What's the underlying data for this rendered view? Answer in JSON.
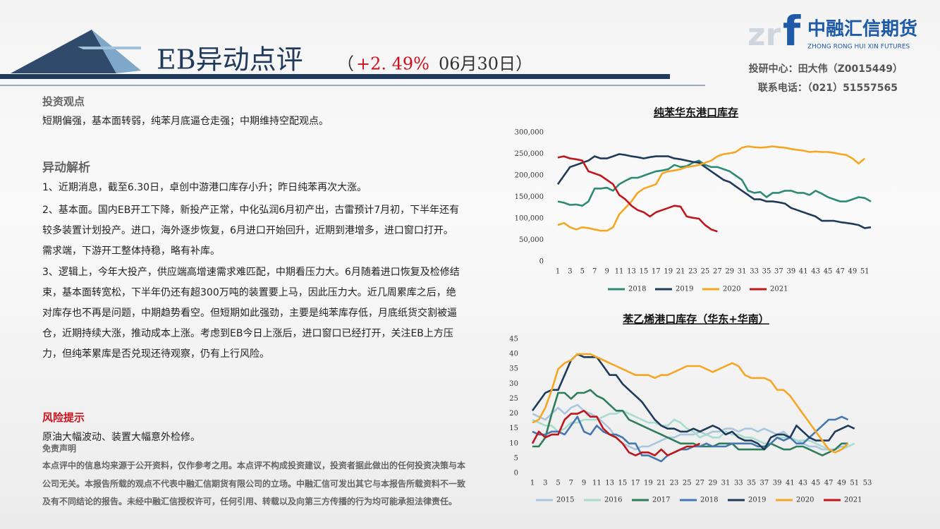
{
  "header": {
    "title": "EB异动点评",
    "open": "（",
    "change": "+2. 49%",
    "date": "06月30日）"
  },
  "logo": {
    "mark": "zr",
    "f": "f",
    "name": "中融汇信期货",
    "english": "ZHONG RONG HUI XIN FUTURES"
  },
  "contact": {
    "center": "投研中心：田大伟（Z0015449）",
    "phone": "联系电话：（021）51557565"
  },
  "view": {
    "heading": "投资观点",
    "text": "短期偏强，基本面转弱，纯苯月底逼仓走强；中期维持空配观点。"
  },
  "analysis": {
    "heading": "异动解析",
    "items": [
      "1、近期消息，截至6.30日，卓创中游港口库存小升；昨日纯苯再次大涨。",
      "2、基本面。国内EB开工下降，新投产正常，中化弘润6月初产出，古雷预计7月初，下半年还有较多装置计划投产。进口，海外逐步恢复，6月进口开始回升，近期到港增多，进口窗口打开。需求端，下游开工整体持稳，略有补库。",
      "3、逻辑上，今年大投产，供应端高增速需求难匹配，中期看压力大。6月随着进口恢复及检修结束，基本面转宽松，下半年仍还有超300万吨的装置要上马，因此压力大。近几周累库之后，绝对库存也不再是问题，中期趋势看空。但短期如此强劲，主要是纯苯库存低，月底纸货交割被逼仓，近期持续大涨，推动成本上涨。考虑到EB今日上涨后，进口窗口已经打开，关注EB上方压力，但纯苯累库是否兑现还待观察，仍有上行风险。"
    ]
  },
  "risk": {
    "heading": "风险提示",
    "text": "原油大幅波动、装置大幅意外检修。"
  },
  "disclaimer": {
    "heading": "免责声明",
    "text": "本点评中的信息均来源于公开资料，仅作参考之用。本点评不构成投资建议，投资者据此做出的任何投资决策与本公司无关。本报告所载的观点不代表中融汇信期货有限公司的立场。中融汇信可发出其它与本报告所载资料不一致及有不同结论的报告。未经中融汇信授权许可，任何引用、转载以及向第三方传播的行为均可能承担法律责任。"
  },
  "chart_data": [
    {
      "type": "line",
      "title": "纯苯华东港口库存",
      "categories": [
        1,
        null,
        3,
        null,
        5,
        null,
        7,
        null,
        9,
        null,
        11,
        null,
        13,
        null,
        15,
        null,
        17,
        null,
        19,
        null,
        21,
        null,
        23,
        null,
        25,
        null,
        27,
        null,
        29,
        null,
        31,
        null,
        33,
        null,
        35,
        null,
        37,
        null,
        39,
        null,
        41,
        null,
        43,
        null,
        45,
        null,
        47,
        null,
        49,
        null,
        51,
        null
      ],
      "ylim": [
        0,
        300000
      ],
      "yticks": [
        0,
        {
          "value": 50000,
          "label": "50,000"
        },
        {
          "value": 100000,
          "label": "100,000"
        },
        {
          "value": 150000,
          "label": "150,000"
        },
        {
          "value": 200000,
          "label": "200,000"
        },
        {
          "value": 250000,
          "label": "250,000"
        },
        {
          "value": 300000,
          "label": "300,000"
        }
      ],
      "legend": "bottom",
      "series": [
        {
          "name": "2018",
          "color": "#2e8b73",
          "values": [
            140000,
            137000,
            132000,
            133000,
            130000,
            140000,
            170000,
            170000,
            172000,
            165000,
            180000,
            188000,
            195000,
            195000,
            200000,
            205000,
            210000,
            212000,
            215000,
            225000,
            220000,
            222000,
            230000,
            235000,
            225000,
            220000,
            220000,
            215000,
            210000,
            200000,
            190000,
            165000,
            160000,
            162000,
            150000,
            160000,
            160000,
            165000,
            165000,
            160000,
            160000,
            155000,
            165000,
            158000,
            150000,
            145000,
            140000,
            140000,
            145000,
            150000,
            148000,
            140000
          ]
        },
        {
          "name": "2019",
          "color": "#1f3a5a",
          "values": [
            180000,
            200000,
            220000,
            225000,
            230000,
            235000,
            245000,
            240000,
            240000,
            245000,
            250000,
            248000,
            245000,
            243000,
            240000,
            243000,
            245000,
            245000,
            245000,
            240000,
            238000,
            235000,
            232000,
            230000,
            220000,
            210000,
            200000,
            190000,
            185000,
            175000,
            165000,
            155000,
            145000,
            145000,
            140000,
            140000,
            138000,
            135000,
            125000,
            120000,
            115000,
            110000,
            105000,
            95000,
            95000,
            95000,
            92000,
            90000,
            88000,
            85000,
            78000,
            80000
          ]
        },
        {
          "name": "2020",
          "color": "#f5a623",
          "values": [
            85000,
            90000,
            80000,
            75000,
            80000,
            78000,
            75000,
            72000,
            72000,
            80000,
            110000,
            125000,
            140000,
            160000,
            170000,
            175000,
            180000,
            205000,
            210000,
            212000,
            215000,
            220000,
            222000,
            225000,
            230000,
            235000,
            245000,
            250000,
            252000,
            255000,
            265000,
            268000,
            266000,
            265000,
            266000,
            268000,
            266000,
            265000,
            262000,
            260000,
            258000,
            255000,
            256000,
            255000,
            255000,
            253000,
            250000,
            248000,
            240000,
            228000,
            240000,
            null
          ]
        },
        {
          "name": "2021",
          "color": "#c0161d",
          "values": [
            242000,
            245000,
            240000,
            238000,
            235000,
            210000,
            205000,
            200000,
            190000,
            180000,
            155000,
            145000,
            130000,
            120000,
            115000,
            105000,
            115000,
            120000,
            125000,
            130000,
            128000,
            105000,
            102000,
            100000,
            85000,
            75000,
            70000,
            null,
            null,
            null,
            null,
            null,
            null,
            null,
            null,
            null,
            null,
            null,
            null,
            null,
            null,
            null,
            null,
            null,
            null,
            null,
            null,
            null,
            null,
            null,
            null,
            null
          ]
        }
      ]
    },
    {
      "type": "line",
      "title": "苯乙烯港口库存（华东+华南）",
      "categories": [
        1,
        null,
        3,
        null,
        5,
        null,
        7,
        null,
        9,
        null,
        11,
        null,
        13,
        null,
        15,
        null,
        17,
        null,
        19,
        null,
        21,
        null,
        23,
        null,
        25,
        null,
        27,
        null,
        29,
        null,
        31,
        null,
        33,
        null,
        35,
        null,
        37,
        null,
        39,
        null,
        41,
        null,
        43,
        null,
        45,
        null,
        47,
        null,
        49,
        null,
        51,
        null,
        53
      ],
      "ylim": [
        0,
        45
      ],
      "yticks": [
        0,
        5,
        10,
        15,
        20,
        25,
        30,
        35,
        40,
        45
      ],
      "legend": "bottom",
      "series": [
        {
          "name": "2015",
          "color": "#a9c6e0",
          "values": [
            20,
            19,
            18,
            20,
            22,
            20,
            22,
            23,
            21,
            20,
            19,
            17,
            15,
            12,
            10,
            9,
            8,
            9,
            9,
            10,
            11,
            12,
            12,
            13,
            13,
            13,
            14,
            13,
            14,
            14,
            15,
            15,
            14,
            15,
            15,
            14,
            15,
            14,
            13,
            14,
            12,
            11,
            10,
            9,
            9,
            8,
            8,
            8,
            9,
            9,
            null,
            null,
            null
          ]
        },
        {
          "name": "2016",
          "color": "#a8dccf",
          "values": [
            18,
            17,
            16,
            16,
            14,
            15,
            17,
            17,
            18,
            18,
            18,
            19,
            20,
            20,
            21,
            20,
            19,
            18,
            17,
            17,
            16,
            16,
            18,
            17,
            15,
            14,
            12,
            13,
            12,
            12,
            14,
            13,
            13,
            12,
            12,
            11,
            10,
            10,
            12,
            12,
            12,
            11,
            11,
            11,
            10,
            9,
            8,
            7,
            8,
            9,
            10,
            null,
            null
          ]
        },
        {
          "name": "2017",
          "color": "#2e7d5b",
          "values": [
            9,
            9,
            12,
            20,
            27,
            27,
            25,
            27,
            27,
            28,
            26,
            25,
            23,
            21,
            21,
            18,
            17,
            16,
            15,
            14,
            13,
            12,
            11,
            10,
            10,
            10,
            9,
            9,
            9,
            10,
            10,
            10,
            8,
            8,
            8,
            8,
            8,
            10,
            9,
            8,
            8,
            9,
            9,
            8,
            7,
            6,
            7,
            8,
            10,
            10,
            null,
            null,
            null
          ]
        },
        {
          "name": "2018",
          "color": "#4577b0",
          "values": [
            14,
            13,
            13,
            14,
            14,
            13,
            16,
            19,
            14,
            13,
            16,
            14,
            13,
            13,
            12,
            10,
            10,
            6,
            6,
            5,
            4,
            6,
            7,
            8,
            8,
            9,
            9,
            10,
            9,
            9,
            9,
            10,
            10,
            10,
            10,
            9,
            9,
            10,
            12,
            11,
            12,
            10,
            10,
            12,
            14,
            16,
            18,
            18,
            19,
            18,
            null,
            null,
            null
          ]
        },
        {
          "name": "2019",
          "color": "#1f3a5a",
          "values": [
            21,
            24,
            27,
            28,
            28,
            33,
            38,
            40,
            39,
            39,
            39,
            36,
            33,
            33,
            30,
            28,
            26,
            24,
            21,
            18,
            16,
            15,
            15,
            14,
            14,
            15,
            14,
            15,
            16,
            15,
            13,
            14,
            12,
            11,
            11,
            10,
            8,
            12,
            13,
            13,
            12,
            16,
            14,
            12,
            11,
            11,
            11,
            14,
            15,
            16,
            15,
            null,
            null
          ]
        },
        {
          "name": "2020",
          "color": "#f5a623",
          "values": [
            17,
            18,
            22,
            28,
            35,
            37,
            38,
            40,
            40,
            40,
            39,
            38,
            37,
            36,
            35,
            34,
            33,
            33,
            33,
            32,
            33,
            33,
            34,
            35,
            36,
            36,
            36,
            35,
            34,
            35,
            36,
            37,
            36,
            33,
            32,
            32,
            32,
            31,
            28,
            28,
            26,
            23,
            20,
            17,
            14,
            11,
            8,
            7,
            8,
            10,
            null,
            null,
            null
          ]
        },
        {
          "name": "2021",
          "color": "#c0161d",
          "values": [
            10,
            14,
            12,
            13,
            13,
            18,
            20,
            20,
            21,
            19,
            19,
            15,
            13,
            12,
            10,
            7,
            6,
            7,
            7,
            6,
            8,
            6,
            7,
            8,
            9,
            9,
            10,
            null,
            null,
            null,
            null,
            null,
            null,
            null,
            null,
            null,
            null,
            null,
            null,
            null,
            null,
            null,
            null,
            null,
            null,
            null,
            null,
            null,
            null,
            null,
            null,
            null,
            null
          ]
        }
      ]
    }
  ]
}
